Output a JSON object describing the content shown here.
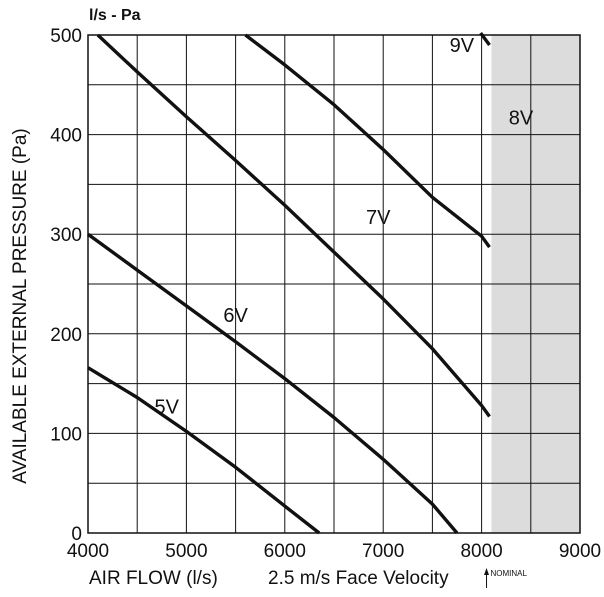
{
  "chart_data": {
    "type": "line",
    "unit_label": "l/s - Pa",
    "xlabel": "AIR FLOW (l/s)",
    "xlabel_note": "2.5 m/s Face Velocity",
    "nominal_label": "NOMINAL",
    "ylabel": "AVAILABLE EXTERNAL PRESSURE (Pa)",
    "xlim": [
      4000,
      9000
    ],
    "ylim": [
      0,
      500
    ],
    "x_ticks": [
      4000,
      5000,
      6000,
      7000,
      8000,
      9000
    ],
    "y_ticks": [
      0,
      100,
      200,
      300,
      400,
      500
    ],
    "x_tick_labels": [
      "4000",
      "5000",
      "6000",
      "7000",
      "8000",
      "9000"
    ],
    "y_tick_labels": [
      "0",
      "100",
      "200",
      "300",
      "400",
      "500"
    ],
    "x_grid_step": 500,
    "y_grid_step": 50,
    "grid": true,
    "shaded_region_x": [
      8100,
      9000
    ],
    "shaded_color": "#dcdcdc",
    "nominal_x": 8050,
    "series": [
      {
        "name": "5V",
        "label_at": [
          5800,
          5200
        ],
        "label_pos": {
          "x": 4800,
          "y": 120
        },
        "x": [
          4000,
          4500,
          5000,
          5500,
          6000,
          6350
        ],
        "y": [
          166,
          136,
          102,
          66,
          27,
          0
        ]
      },
      {
        "name": "6V",
        "label_at": [
          5500,
          5400
        ],
        "label_pos": {
          "x": 5500,
          "y": 212
        },
        "x": [
          4000,
          4500,
          5000,
          5500,
          6000,
          6500,
          7000,
          7500,
          7750
        ],
        "y": [
          300,
          264,
          228,
          192,
          155,
          116,
          74,
          29,
          0
        ]
      },
      {
        "name": "7V",
        "label_at": [
          6900,
          6300
        ],
        "label_pos": {
          "x": 6950,
          "y": 310
        },
        "x": [
          4100,
          4500,
          5000,
          5500,
          6000,
          6500,
          7000,
          7500,
          8000,
          8080
        ],
        "y": [
          500,
          463,
          418,
          374,
          329,
          282,
          235,
          185,
          128,
          117
        ]
      },
      {
        "name": "8V",
        "label_at": [
          7000,
          8000
        ],
        "label_pos": {
          "x": 8400,
          "y": 410
        },
        "x": [
          5600,
          6000,
          6500,
          7000,
          7500,
          8000,
          8080
        ],
        "y": [
          500,
          470,
          430,
          385,
          337,
          298,
          287
        ]
      },
      {
        "name": "9V",
        "label_at": [
          8000,
          8050
        ],
        "label_pos": {
          "x": 7800,
          "y": 483
        },
        "x": [
          7990,
          8080
        ],
        "y": [
          502,
          490
        ]
      }
    ]
  }
}
